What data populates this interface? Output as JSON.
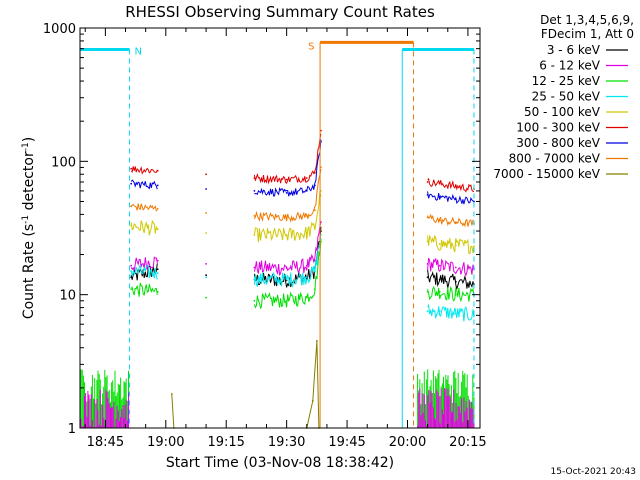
{
  "chart_data": {
    "type": "line",
    "title": "RHESSI Observing Summary Count Rates",
    "xlabel": "Start Time (03-Nov-08 18:38:42)",
    "ylabel_main": "Count Rate (s",
    "ylabel_sup1": "-1",
    "ylabel_mid": " detector",
    "ylabel_sup2": "-1",
    "ylabel_end": ")",
    "y_scale": "log",
    "ylim": [
      1,
      1000
    ],
    "xlim": [
      "18:38:42",
      "20:18:00"
    ],
    "x_ticks": [
      "18:45",
      "19:00",
      "19:15",
      "19:30",
      "19:45",
      "20:00",
      "20:15"
    ],
    "x_tick_minutes": [
      1125,
      1140,
      1155,
      1170,
      1185,
      1200,
      1215
    ],
    "y_ticks": [
      "1",
      "10",
      "100",
      "1000"
    ],
    "y_tick_values": [
      1,
      10,
      100,
      1000
    ],
    "legend_header": [
      "Det 1,3,4,5,6,9,",
      "FDecim 1, Att 0"
    ],
    "legend_position": "right",
    "timestamp": "15-Oct-2021 20:43",
    "annotations": [
      {
        "text": "N",
        "color": "#00d8f0"
      },
      {
        "text": "S",
        "color": "#f07800"
      }
    ],
    "series": [
      {
        "name": "3 - 6 keV",
        "color": "#000000",
        "x": [
          1131.4,
          1138,
          1150,
          1162,
          1170,
          1175,
          1177,
          1178.5,
          1205,
          1208,
          1212,
          1216.5
        ],
        "y": [
          13.5,
          15.5,
          14,
          13,
          12.8,
          13.5,
          15,
          30,
          13.5,
          13,
          12.5,
          12
        ]
      },
      {
        "name": "6 - 12 keV",
        "color": "#e000e0",
        "x": [
          1131.4,
          1138,
          1150,
          1162,
          1170,
          1175,
          1177,
          1178.5,
          1205,
          1208,
          1212,
          1216.5
        ],
        "y": [
          16.5,
          18,
          17,
          16,
          15.8,
          16.5,
          18,
          35,
          17,
          16.5,
          16,
          15.5
        ]
      },
      {
        "name": "12 - 25 keV",
        "color": "#00e000",
        "x": [
          1131.4,
          1138,
          1150,
          1162,
          1170,
          1175,
          1177,
          1178.5,
          1205,
          1208,
          1212,
          1216.5
        ],
        "y": [
          11,
          10.5,
          9.5,
          9,
          9,
          9.5,
          11,
          25,
          10.5,
          10.5,
          10,
          10
        ]
      },
      {
        "name": "25 - 50 keV",
        "color": "#00e8f0",
        "x": [
          1131.4,
          1138,
          1150,
          1162,
          1170,
          1175,
          1177,
          1178.5,
          1205,
          1208,
          1212,
          1216.5
        ],
        "y": [
          15,
          14.5,
          13.5,
          13,
          13,
          13.5,
          15,
          28,
          7.5,
          7.5,
          7.2,
          7
        ]
      },
      {
        "name": "50 - 100 keV",
        "color": "#d0c800",
        "x": [
          1131.4,
          1138,
          1150,
          1162,
          1170,
          1175,
          1177,
          1178.5,
          1205,
          1208,
          1212,
          1216.5
        ],
        "y": [
          33,
          31,
          29,
          28,
          28,
          29,
          32,
          60,
          25,
          24,
          23.5,
          23
        ]
      },
      {
        "name": "100 - 300 keV",
        "color": "#e00000",
        "x": [
          1131.4,
          1138,
          1150,
          1162,
          1170,
          1175,
          1177,
          1178.5,
          1205,
          1208,
          1212,
          1216.5
        ],
        "y": [
          88,
          85,
          80,
          75,
          73,
          75,
          82,
          170,
          70,
          68,
          65,
          62
        ]
      },
      {
        "name": "300 - 800 keV",
        "color": "#0000e0",
        "x": [
          1131.4,
          1138,
          1150,
          1162,
          1170,
          1175,
          1177,
          1178.5,
          1205,
          1208,
          1212,
          1216.5
        ],
        "y": [
          68,
          66,
          62,
          60,
          58,
          60,
          66,
          140,
          56,
          54,
          52,
          50
        ]
      },
      {
        "name": "800 - 7000 keV",
        "color": "#f07800",
        "x": [
          1131.4,
          1138,
          1150,
          1162,
          1170,
          1175,
          1177,
          1178.5,
          1205,
          1208,
          1212,
          1216.5
        ],
        "y": [
          46,
          44,
          41,
          39,
          38,
          39,
          43,
          90,
          38,
          36,
          35,
          34
        ]
      },
      {
        "name": "7000 - 15000 keV",
        "color": "#808000",
        "x": [
          1141.5,
          1142,
          1175,
          1176.5,
          1177.5,
          1178
        ],
        "y": [
          1.8,
          1,
          1,
          1.6,
          4.5,
          1
        ]
      }
    ]
  }
}
